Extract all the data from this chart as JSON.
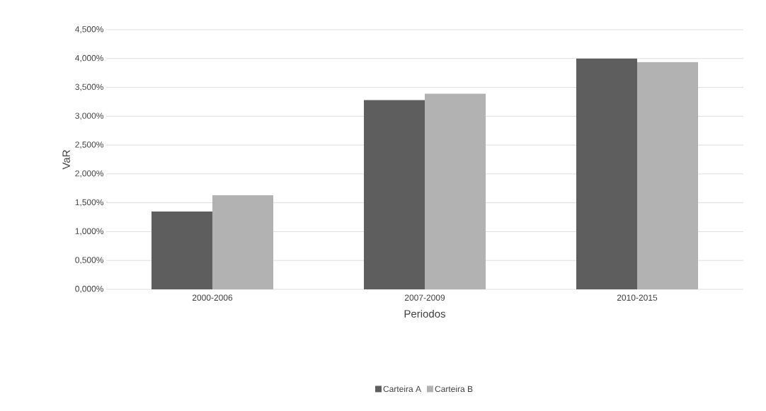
{
  "chart_data": {
    "type": "bar",
    "xlabel": "Periodos",
    "ylabel": "VaR",
    "categories": [
      "2000-2006",
      "2007-2009",
      "2010-2015"
    ],
    "series": [
      {
        "name": "Carteira A",
        "color": "#5e5e5e",
        "values": [
          1.35,
          3.28,
          4.0
        ]
      },
      {
        "name": "Carteira B",
        "color": "#b2b2b2",
        "values": [
          1.63,
          3.39,
          3.94
        ]
      }
    ],
    "ylim": [
      0,
      4.5
    ],
    "yticks": [
      {
        "value": 0,
        "label": "0,000%"
      },
      {
        "value": 0.5,
        "label": "0,500%"
      },
      {
        "value": 1,
        "label": "1,000%"
      },
      {
        "value": 1.5,
        "label": "1,500%"
      },
      {
        "value": 2,
        "label": "2,000%"
      },
      {
        "value": 2.5,
        "label": "2,500%"
      },
      {
        "value": 3,
        "label": "3,000%"
      },
      {
        "value": 3.5,
        "label": "3,500%"
      },
      {
        "value": 4,
        "label": "4,000%"
      },
      {
        "value": 4.5,
        "label": "4,500%"
      }
    ],
    "grid": "y",
    "legend": "bottom"
  }
}
